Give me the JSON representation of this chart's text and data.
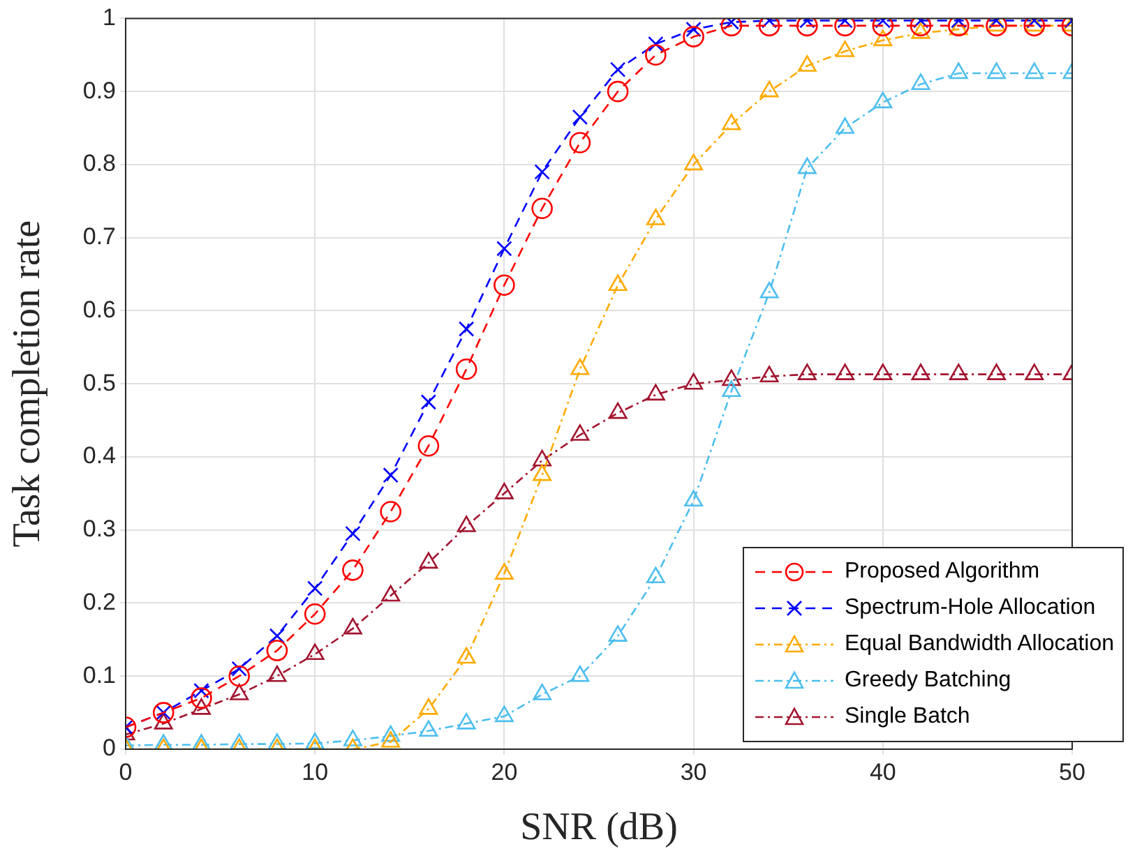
{
  "chart_data": {
    "type": "line",
    "xlabel": "SNR (dB)",
    "ylabel": "Task completion rate",
    "x": [
      0,
      2,
      4,
      6,
      8,
      10,
      12,
      14,
      16,
      18,
      20,
      22,
      24,
      26,
      28,
      30,
      32,
      34,
      36,
      38,
      40,
      42,
      44,
      46,
      48,
      50
    ],
    "xlim": [
      0,
      50
    ],
    "xticks": [
      0,
      10,
      20,
      30,
      40,
      50
    ],
    "ylim": [
      0,
      1
    ],
    "yticks": [
      0,
      0.1,
      0.2,
      0.3,
      0.4,
      0.5,
      0.6,
      0.7,
      0.8,
      0.9,
      1
    ],
    "grid": true,
    "legend": "bottom right",
    "series": [
      {
        "name": "Proposed Algorithm",
        "color": "#ff0000",
        "marker": "circle",
        "line_style": "dashed",
        "values": [
          0.03,
          0.05,
          0.07,
          0.1,
          0.135,
          0.185,
          0.245,
          0.325,
          0.415,
          0.52,
          0.635,
          0.74,
          0.83,
          0.9,
          0.95,
          0.975,
          0.99,
          0.99,
          0.99,
          0.99,
          0.99,
          0.99,
          0.99,
          0.99,
          0.99,
          0.99
        ]
      },
      {
        "name": "Spectrum-Hole Allocation",
        "color": "#0000ff",
        "marker": "cross",
        "line_style": "dashed",
        "values": [
          0.03,
          0.05,
          0.08,
          0.11,
          0.155,
          0.22,
          0.295,
          0.375,
          0.475,
          0.575,
          0.685,
          0.79,
          0.865,
          0.93,
          0.965,
          0.985,
          0.995,
          0.997,
          0.997,
          0.997,
          0.997,
          0.997,
          0.997,
          0.997,
          0.997,
          0.997
        ]
      },
      {
        "name": "Equal Bandwidth Allocation",
        "color": "#ffaa00",
        "marker": "triangle",
        "line_style": "dotted",
        "values": [
          0,
          0,
          0,
          0,
          0,
          0,
          0,
          0.01,
          0.055,
          0.125,
          0.24,
          0.375,
          0.52,
          0.635,
          0.725,
          0.8,
          0.855,
          0.9,
          0.935,
          0.955,
          0.97,
          0.98,
          0.985,
          0.99,
          0.99,
          0.99
        ]
      },
      {
        "name": "Greedy Batching",
        "color": "#4dbeee",
        "marker": "triangle",
        "line_style": "dotted",
        "values": [
          0.005,
          0.006,
          0.006,
          0.007,
          0.007,
          0.008,
          0.012,
          0.018,
          0.025,
          0.035,
          0.045,
          0.075,
          0.1,
          0.155,
          0.235,
          0.34,
          0.49,
          0.625,
          0.795,
          0.85,
          0.885,
          0.91,
          0.925,
          0.925,
          0.925,
          0.925
        ]
      },
      {
        "name": "Single Batch",
        "color": "#a2142f",
        "marker": "triangle",
        "line_style": "dotted",
        "values": [
          0.02,
          0.035,
          0.055,
          0.075,
          0.1,
          0.13,
          0.165,
          0.21,
          0.255,
          0.305,
          0.35,
          0.395,
          0.43,
          0.46,
          0.485,
          0.5,
          0.505,
          0.51,
          0.513,
          0.513,
          0.513,
          0.513,
          0.513,
          0.513,
          0.513,
          0.513
        ]
      }
    ]
  }
}
